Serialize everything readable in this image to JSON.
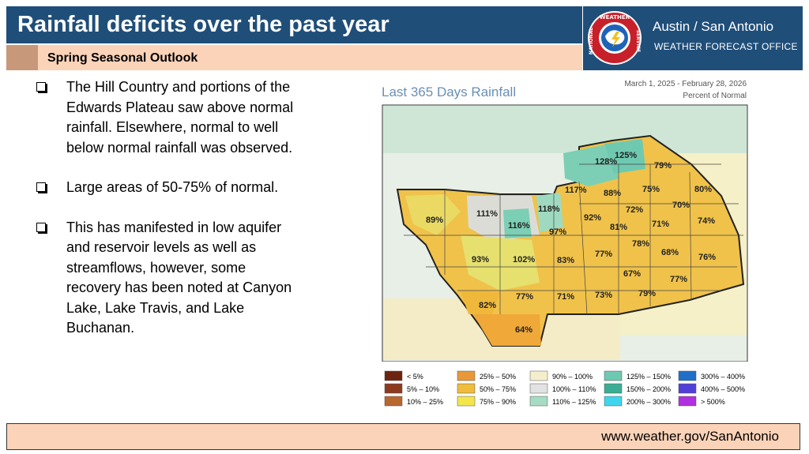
{
  "header": {
    "title": "Rainfall deficits over the past year",
    "subtitle": "Spring Seasonal Outlook"
  },
  "brand": {
    "office": "Austin / San Antonio",
    "office_sub": "WEATHER FORECAST OFFICE",
    "logo_top": "WEATHER",
    "logo_left": "NATIONAL",
    "logo_right": "SERVICE"
  },
  "bullets": [
    "The Hill Country and portions of the Edwards Plateau saw above normal rainfall. Elsewhere, normal to well below normal rainfall was observed.",
    "Large areas of 50-75% of normal.",
    "This has manifested in low aquifer and reservoir levels as well as streamflows, however, some recovery has been noted at Canyon Lake, Lake Travis, and Lake Buchanan."
  ],
  "map": {
    "title": "Last 365 Days Rainfall",
    "date_range": "March 1, 2025 - February 28, 2026",
    "units": "Percent of Normal",
    "county_values": [
      "128%",
      "125%",
      "79%",
      "117%",
      "88%",
      "75%",
      "80%",
      "118%",
      "92%",
      "72%",
      "70%",
      "111%",
      "89%",
      "116%",
      "97%",
      "81%",
      "71%",
      "74%",
      "78%",
      "77%",
      "93%",
      "102%",
      "83%",
      "68%",
      "76%",
      "67%",
      "77%",
      "82%",
      "77%",
      "71%",
      "73%",
      "79%",
      "64%"
    ]
  },
  "legend": [
    {
      "label": "< 5%",
      "color": "#6b2410"
    },
    {
      "label": "5%  –  10%",
      "color": "#8c3a1e"
    },
    {
      "label": "10% – 25%",
      "color": "#b8672f"
    },
    {
      "label": "25% – 50%",
      "color": "#e8983a"
    },
    {
      "label": "50% – 75%",
      "color": "#f0bd3a"
    },
    {
      "label": "75% – 90%",
      "color": "#f2e64a"
    },
    {
      "label": "90% – 100%",
      "color": "#f3eecb"
    },
    {
      "label": "100% – 110%",
      "color": "#e2e2e2"
    },
    {
      "label": "110% – 125%",
      "color": "#a6dcc3"
    },
    {
      "label": "125% – 150%",
      "color": "#6fc9b1"
    },
    {
      "label": "150% – 200%",
      "color": "#3aae94"
    },
    {
      "label": "200% – 300%",
      "color": "#3ed6ef"
    },
    {
      "label": "300% – 400%",
      "color": "#1f6fc8"
    },
    {
      "label": "400% – 500%",
      "color": "#5040d8"
    },
    {
      "label": "> 500%",
      "color": "#b030e0"
    }
  ],
  "footer": {
    "url": "www.weather.gov/SanAntonio"
  }
}
